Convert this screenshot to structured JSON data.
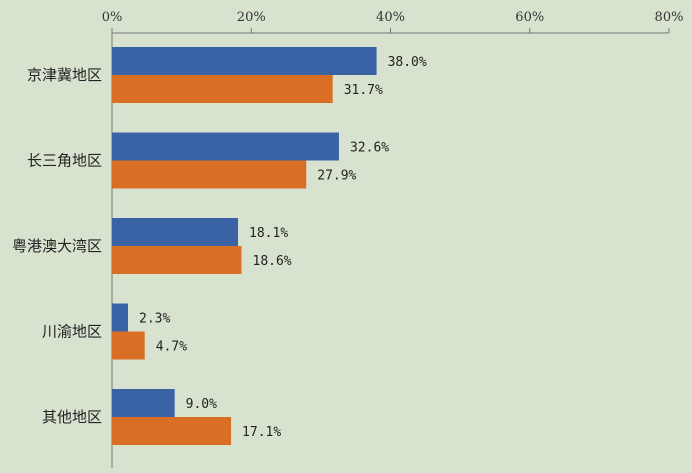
{
  "chart_data": {
    "type": "bar",
    "orientation": "horizontal",
    "categories": [
      "京津冀地区",
      "长三角地区",
      "粤港澳大湾区",
      "川渝地区",
      "其他地区"
    ],
    "series": [
      {
        "values": [
          38.0,
          32.6,
          18.1,
          2.3,
          9.0
        ],
        "labels": [
          "38.0%",
          "32.6%",
          "18.1%",
          "2.3%",
          "9.0%"
        ],
        "color": "#3a63a6"
      },
      {
        "values": [
          31.7,
          27.9,
          18.6,
          4.7,
          17.1
        ],
        "labels": [
          "31.7%",
          "27.9%",
          "18.6%",
          "4.7%",
          "17.1%"
        ],
        "color": "#d96f24"
      }
    ],
    "xaxis": {
      "ticks": [
        "0%",
        "20%",
        "40%",
        "60%",
        "80%"
      ],
      "tick_values": [
        0,
        20,
        40,
        60,
        80
      ],
      "position": "top"
    },
    "xlim": [
      0,
      80
    ],
    "grid": false,
    "title": "",
    "xlabel": "",
    "ylabel": ""
  },
  "colors": {
    "background": "#d7e3cf",
    "axis": "#777777"
  }
}
